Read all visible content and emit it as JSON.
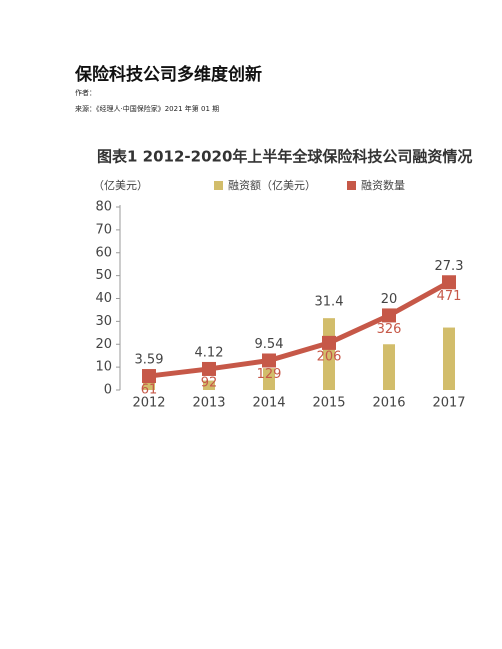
{
  "header": {
    "title": "保险科技公司多维度创新",
    "author": "作者：",
    "source": "来源：《经理人·中国保险家》2021 年第 01 期"
  },
  "chart_data": {
    "type": "bar_line",
    "title": "图表1  2012-2020年上半年全球保险科技公司融资情况",
    "y_unit_label": "（亿美元）",
    "categories": [
      "2012",
      "2013",
      "2014",
      "2015",
      "2016",
      "2017"
    ],
    "series": [
      {
        "name": "融资额（亿美元）",
        "color": "#d2bd6b",
        "kind": "bar",
        "values": [
          3.59,
          4.12,
          9.54,
          31.4,
          20,
          27.3
        ]
      },
      {
        "name": "融资数量",
        "color": "#c65848",
        "kind": "line",
        "axis": "y2",
        "values": [
          61,
          92,
          129,
          206,
          326,
          471
        ]
      }
    ],
    "ylim": [
      0,
      80
    ],
    "yticks": [
      0,
      10,
      20,
      30,
      40,
      50,
      60,
      70,
      80
    ],
    "y2lim": [
      0,
      800
    ]
  }
}
